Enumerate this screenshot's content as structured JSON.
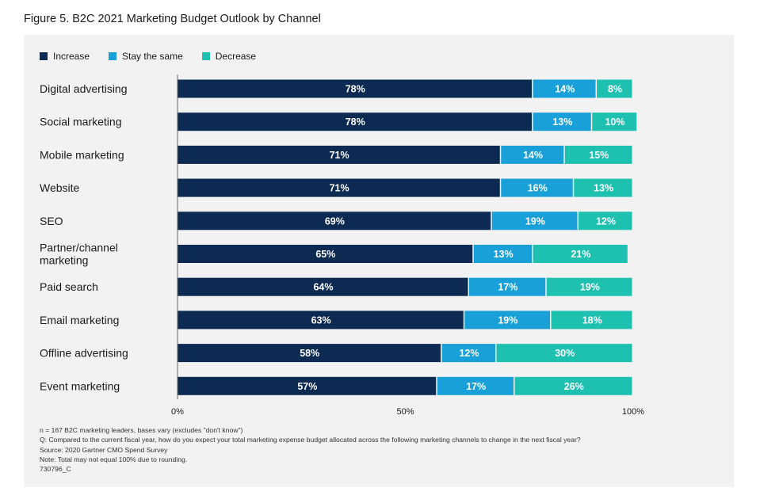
{
  "figure_title": "Figure 5. B2C 2021 Marketing Budget Outlook by Channel",
  "colors": {
    "increase": "#0d2b52",
    "stay_the_same": "#1aa0d8",
    "decrease": "#1ec0b0",
    "panel_background": "#f2f2f2",
    "bar_label": "#ffffff"
  },
  "chart_data": {
    "type": "bar",
    "orientation": "horizontal",
    "stacked": true,
    "title": "Figure 5. B2C 2021 Marketing Budget Outlook by Channel",
    "categories": [
      "Digital advertising",
      "Social marketing",
      "Mobile marketing",
      "Website",
      "SEO",
      "Partner/channel marketing",
      "Paid search",
      "Email marketing",
      "Offline advertising",
      "Event marketing"
    ],
    "category_lines": [
      [
        "Digital advertising"
      ],
      [
        "Social marketing"
      ],
      [
        "Mobile marketing"
      ],
      [
        "Website"
      ],
      [
        "SEO"
      ],
      [
        "Partner/channel",
        "marketing"
      ],
      [
        "Paid search"
      ],
      [
        "Email marketing"
      ],
      [
        "Offline advertising"
      ],
      [
        "Event marketing"
      ]
    ],
    "series": [
      {
        "name": "Increase",
        "color": "#0d2b52",
        "values": [
          78,
          78,
          71,
          71,
          69,
          65,
          64,
          63,
          58,
          57
        ]
      },
      {
        "name": "Stay the same",
        "color": "#1aa0d8",
        "values": [
          14,
          13,
          14,
          16,
          19,
          13,
          17,
          19,
          12,
          17
        ]
      },
      {
        "name": "Decrease",
        "color": "#1ec0b0",
        "values": [
          8,
          10,
          15,
          13,
          12,
          21,
          19,
          18,
          30,
          26
        ]
      }
    ],
    "value_suffix": "%",
    "xlim": [
      0,
      100
    ],
    "x_ticks": [
      0,
      50,
      100
    ],
    "x_tick_labels": [
      "0%",
      "50%",
      "100%"
    ],
    "legend_position": "top-left",
    "grid": false
  },
  "notes": [
    "n = 167 B2C marketing leaders, bases vary (excludes \"don't know\")",
    "Q: Compared to the current fiscal year, how do you expect your total marketing expense budget allocated across the following marketing channels to change in the next fiscal year?",
    "Source: 2020 Gartner CMO Spend Survey",
    "Note: Total may not equal 100% due to rounding.",
    "730796_C"
  ]
}
